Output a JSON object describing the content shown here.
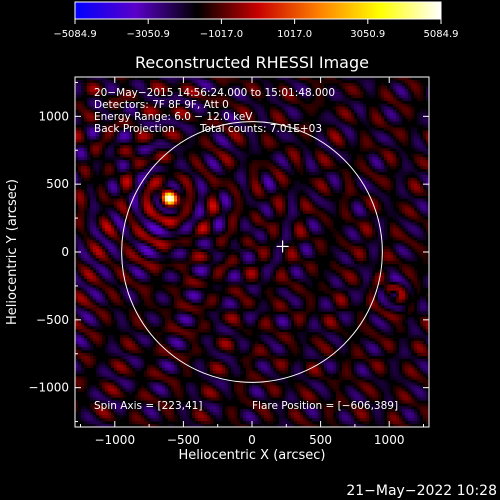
{
  "chart_data": {
    "type": "heatmap",
    "title": "Reconstructed RHESSI Image",
    "xlabel": "Heliocentric X (arcsec)",
    "ylabel": "Heliocentric Y (arcsec)",
    "xlim": [
      -1290,
      1290
    ],
    "ylim": [
      -1290,
      1290
    ],
    "xticks": [
      -1000,
      -500,
      0,
      500,
      1000
    ],
    "yticks": [
      -1000,
      -500,
      0,
      500,
      1000
    ],
    "xtick_labels": [
      "−1000",
      "−500",
      "0",
      "500",
      "1000"
    ],
    "ytick_labels": [
      "−1000",
      "−500",
      "0",
      "500",
      "1000"
    ],
    "colorbar": {
      "min": -5084.9,
      "max": 5084.9,
      "ticks": [
        -5084.9,
        -3050.9,
        -1017.0,
        1017.0,
        3050.9,
        5084.9
      ],
      "tick_labels": [
        "−5084.9",
        "−3050.9",
        "−1017.0",
        "1017.0",
        "3050.9",
        "5084.9"
      ],
      "colors": [
        "#0000ff",
        "#5a00c8",
        "#000000",
        "#c80000",
        "#ff8000",
        "#ffff00",
        "#ffffff"
      ]
    },
    "annotations": [
      "20−May−2015 14:56:24.000 to 15:01:48.000",
      "Detectors: 7F 8F 9F, Att 0",
      "Energy Range: 6.0 − 12.0 keV",
      "Back Projection",
      "Total counts: 7.01E+03"
    ],
    "spin_axis_label": "Spin Axis = [223,41]",
    "flare_position_label": "Flare Position = [−606,389]",
    "flare_position": [
      -606,
      389
    ],
    "spin_axis": [
      223,
      41
    ],
    "solar_limb_radius": 950,
    "grid": false
  },
  "footer": {
    "timestamp": "21−May−2022 10:28"
  }
}
